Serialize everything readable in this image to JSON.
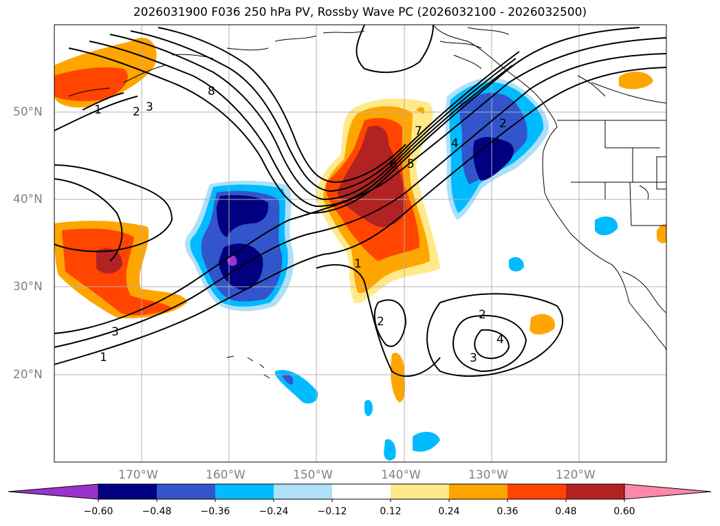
{
  "title": "2026031900 F036 250 hPa PV, Rossby Wave PC (2026032100 - 2026032500)",
  "map": {
    "projection": "plate-carree",
    "lon_range": [
      -180,
      -110
    ],
    "lat_range": [
      10,
      60
    ],
    "lat_labels": [
      "20°N",
      "30°N",
      "40°N",
      "50°N"
    ],
    "lat_values": [
      20,
      30,
      40,
      50
    ],
    "lon_labels": [
      "170°W",
      "160°W",
      "150°W",
      "140°W",
      "130°W",
      "120°W"
    ],
    "lon_values": [
      -170,
      -160,
      -150,
      -140,
      -130,
      -120
    ],
    "colors": {
      "land_outline": "#000000",
      "grid": "#b0b0b0",
      "contour": "#000000"
    },
    "contour_labels": [
      "1",
      "2",
      "3",
      "4",
      "5",
      "6",
      "7",
      "8"
    ]
  },
  "colorbar": {
    "ticks": [
      "−0.60",
      "−0.48",
      "−0.36",
      "−0.24",
      "−0.12",
      "0.12",
      "0.24",
      "0.36",
      "0.48",
      "0.60"
    ],
    "colors": [
      "#9933cc",
      "#000080",
      "#3355cc",
      "#00bbff",
      "#aee0f8",
      "#ffffff",
      "#ffe98a",
      "#ffa500",
      "#ff4500",
      "#b22222",
      "#ff88aa"
    ]
  }
}
